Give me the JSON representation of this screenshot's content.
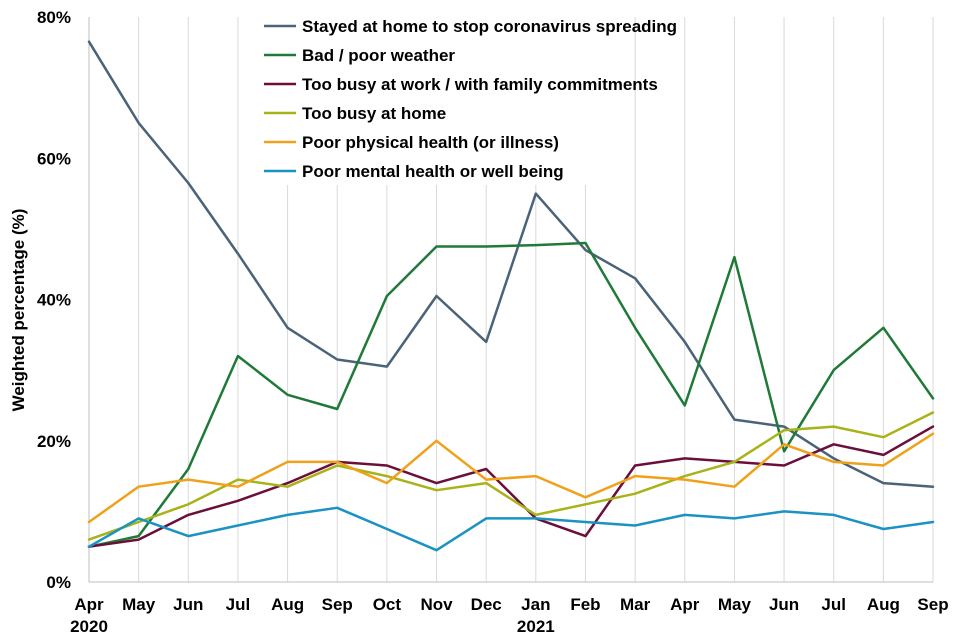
{
  "chart_data": {
    "type": "line",
    "title": "",
    "xlabel": "",
    "ylabel": "Weighted percentage (%)",
    "ylim": [
      0,
      80
    ],
    "yticks": [
      "0%",
      "20%",
      "40%",
      "60%",
      "80%"
    ],
    "ytick_values": [
      0,
      20,
      40,
      60,
      80
    ],
    "categories": [
      "Apr",
      "May",
      "Jun",
      "Jul",
      "Aug",
      "Sep",
      "Oct",
      "Nov",
      "Dec",
      "Jan",
      "Feb",
      "Mar",
      "Apr",
      "May",
      "Jun",
      "Jul",
      "Aug",
      "Sep"
    ],
    "year_labels": [
      {
        "index": 0,
        "label": "2020"
      },
      {
        "index": 9,
        "label": "2021"
      }
    ],
    "grid": "vertical",
    "legend": "top-center",
    "series": [
      {
        "name": "Stayed at home to stop coronavirus spreading",
        "color": "#4a6378",
        "values": [
          76.5,
          65,
          56.5,
          46.5,
          36,
          31.5,
          30.5,
          40.5,
          34,
          55,
          47,
          43,
          34,
          23,
          22,
          17.5,
          14,
          13.5
        ]
      },
      {
        "name": "Bad / poor weather",
        "color": "#1f7a38",
        "values": [
          5,
          6.5,
          16,
          32,
          26.5,
          24.5,
          40.5,
          47.5,
          47.5,
          47.7,
          48,
          36,
          25,
          46,
          18.5,
          30,
          36,
          26
        ]
      },
      {
        "name": "Too busy at work / with family commitments",
        "color": "#6b0f3a",
        "values": [
          5,
          6,
          9.5,
          11.5,
          14,
          17,
          16.5,
          14,
          16,
          9,
          6.5,
          16.5,
          17.5,
          17,
          16.5,
          19.5,
          18,
          22
        ]
      },
      {
        "name": "Too busy at home",
        "color": "#a8b31a",
        "values": [
          6,
          8.5,
          11,
          14.5,
          13.5,
          16.5,
          15,
          13,
          14,
          9.5,
          11,
          12.5,
          15,
          17,
          21.5,
          22,
          20.5,
          24
        ]
      },
      {
        "name": "Poor physical health (or illness)",
        "color": "#f0a11b",
        "values": [
          8.5,
          13.5,
          14.5,
          13.5,
          17,
          17,
          14,
          20,
          14.5,
          15,
          12,
          15,
          14.5,
          13.5,
          19.5,
          17,
          16.5,
          21
        ]
      },
      {
        "name": "Poor mental health or well being",
        "color": "#1b93c2",
        "values": [
          5,
          9,
          6.5,
          8,
          9.5,
          10.5,
          7.5,
          4.5,
          9,
          9,
          8.5,
          8,
          9.5,
          9,
          10,
          9.5,
          7.5,
          8.5
        ]
      }
    ]
  }
}
